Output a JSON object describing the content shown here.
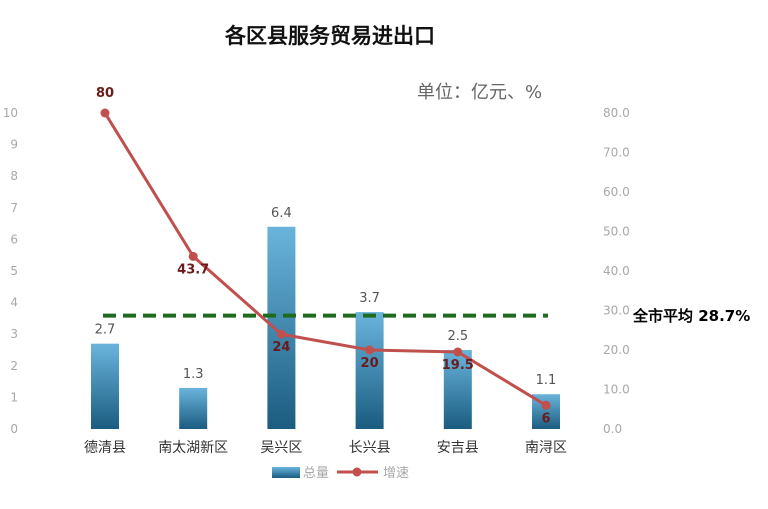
{
  "chart_data": {
    "type": "bar+line",
    "title": "各区县服务贸易进出口",
    "unit_label": "单位：亿元、%",
    "categories": [
      "德清县",
      "南太湖新区",
      "吴兴区",
      "长兴县",
      "安吉县",
      "南浔区"
    ],
    "series": [
      {
        "name": "总量",
        "type": "bar",
        "axis": "left",
        "values": [
          2.7,
          1.3,
          6.4,
          3.7,
          2.5,
          1.1
        ]
      },
      {
        "name": "增速",
        "type": "line",
        "axis": "right",
        "values": [
          80,
          43.7,
          24,
          20,
          19.5,
          6
        ]
      }
    ],
    "left_axis": {
      "ylim": [
        0,
        10
      ],
      "ticks": [
        "0",
        "1",
        "2",
        "3",
        "4",
        "5",
        "6",
        "7",
        "8",
        "9",
        "10"
      ]
    },
    "right_axis": {
      "ylim": [
        0,
        80
      ],
      "ticks": [
        "0.0",
        "10.0",
        "20.0",
        "30.0",
        "40.0",
        "50.0",
        "60.0",
        "70.0",
        "80.0"
      ]
    },
    "reference_line": {
      "value": 28.7,
      "axis": "right",
      "label": "全市平均 28.7%"
    },
    "legend_position": "bottom",
    "colors": {
      "bar": "#4a9cc8",
      "bar_dark": "#1a5a7f",
      "line": "#c0504d",
      "reference": "#1e6b1e"
    }
  }
}
